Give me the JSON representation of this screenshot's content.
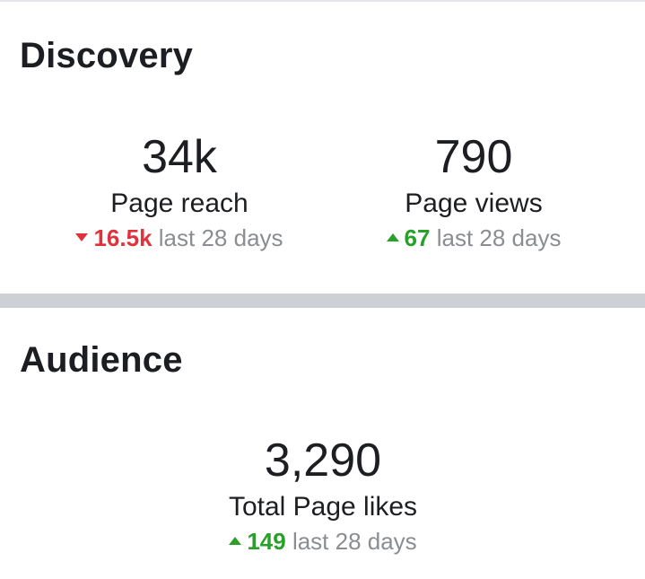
{
  "discovery": {
    "title": "Discovery",
    "metrics": [
      {
        "value": "34k",
        "label": "Page reach",
        "change": "16.5k",
        "direction": "down",
        "period": "last 28 days"
      },
      {
        "value": "790",
        "label": "Page views",
        "change": "67",
        "direction": "up",
        "period": "last 28 days"
      }
    ]
  },
  "audience": {
    "title": "Audience",
    "metrics": [
      {
        "value": "3,290",
        "label": "Total Page likes",
        "change": "149",
        "direction": "up",
        "period": "last 28 days"
      }
    ]
  },
  "colors": {
    "decrease": "#e0323c",
    "increase": "#2aa02a",
    "muted_text": "#8a8d91",
    "divider": "#cdd0d4"
  }
}
